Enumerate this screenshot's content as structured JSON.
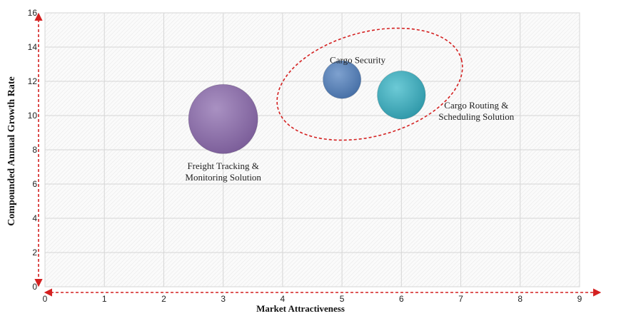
{
  "chart_data": {
    "type": "bubble",
    "xlabel": "Market Attractiveness",
    "ylabel": "Compounded  Annual  Growth Rate",
    "xlim": [
      0,
      9
    ],
    "ylim": [
      0,
      16
    ],
    "x_ticks": [
      "0",
      "1",
      "2",
      "3",
      "4",
      "5",
      "6",
      "7",
      "8",
      "9"
    ],
    "y_ticks": [
      "0",
      "2",
      "4",
      "6",
      "8",
      "10",
      "12",
      "14",
      "16"
    ],
    "grid": true,
    "series": [
      {
        "name": "Freight Tracking & Monitoring Solution",
        "label_lines": [
          "Freight Tracking &",
          "Monitoring Solution"
        ],
        "x": 3.0,
        "y": 9.8,
        "size": 3.0,
        "color": "#8e72a8"
      },
      {
        "name": "Cargo Security",
        "label_lines": [
          "Cargo Security"
        ],
        "x": 5.0,
        "y": 12.1,
        "size": 0.9,
        "color": "#5a82b8"
      },
      {
        "name": "Cargo Routing & Scheduling Solution",
        "label_lines": [
          "Cargo Routing &",
          "Scheduling Solution"
        ],
        "x": 6.0,
        "y": 11.2,
        "size": 1.45,
        "color": "#3fa9b9"
      }
    ],
    "highlight": {
      "shape": "dashed ellipse",
      "color": "#d42020",
      "encloses": [
        "Cargo Security",
        "Cargo Routing & Scheduling Solution"
      ]
    },
    "axis_arrows": {
      "color": "#d42020",
      "style": "dashed"
    }
  }
}
